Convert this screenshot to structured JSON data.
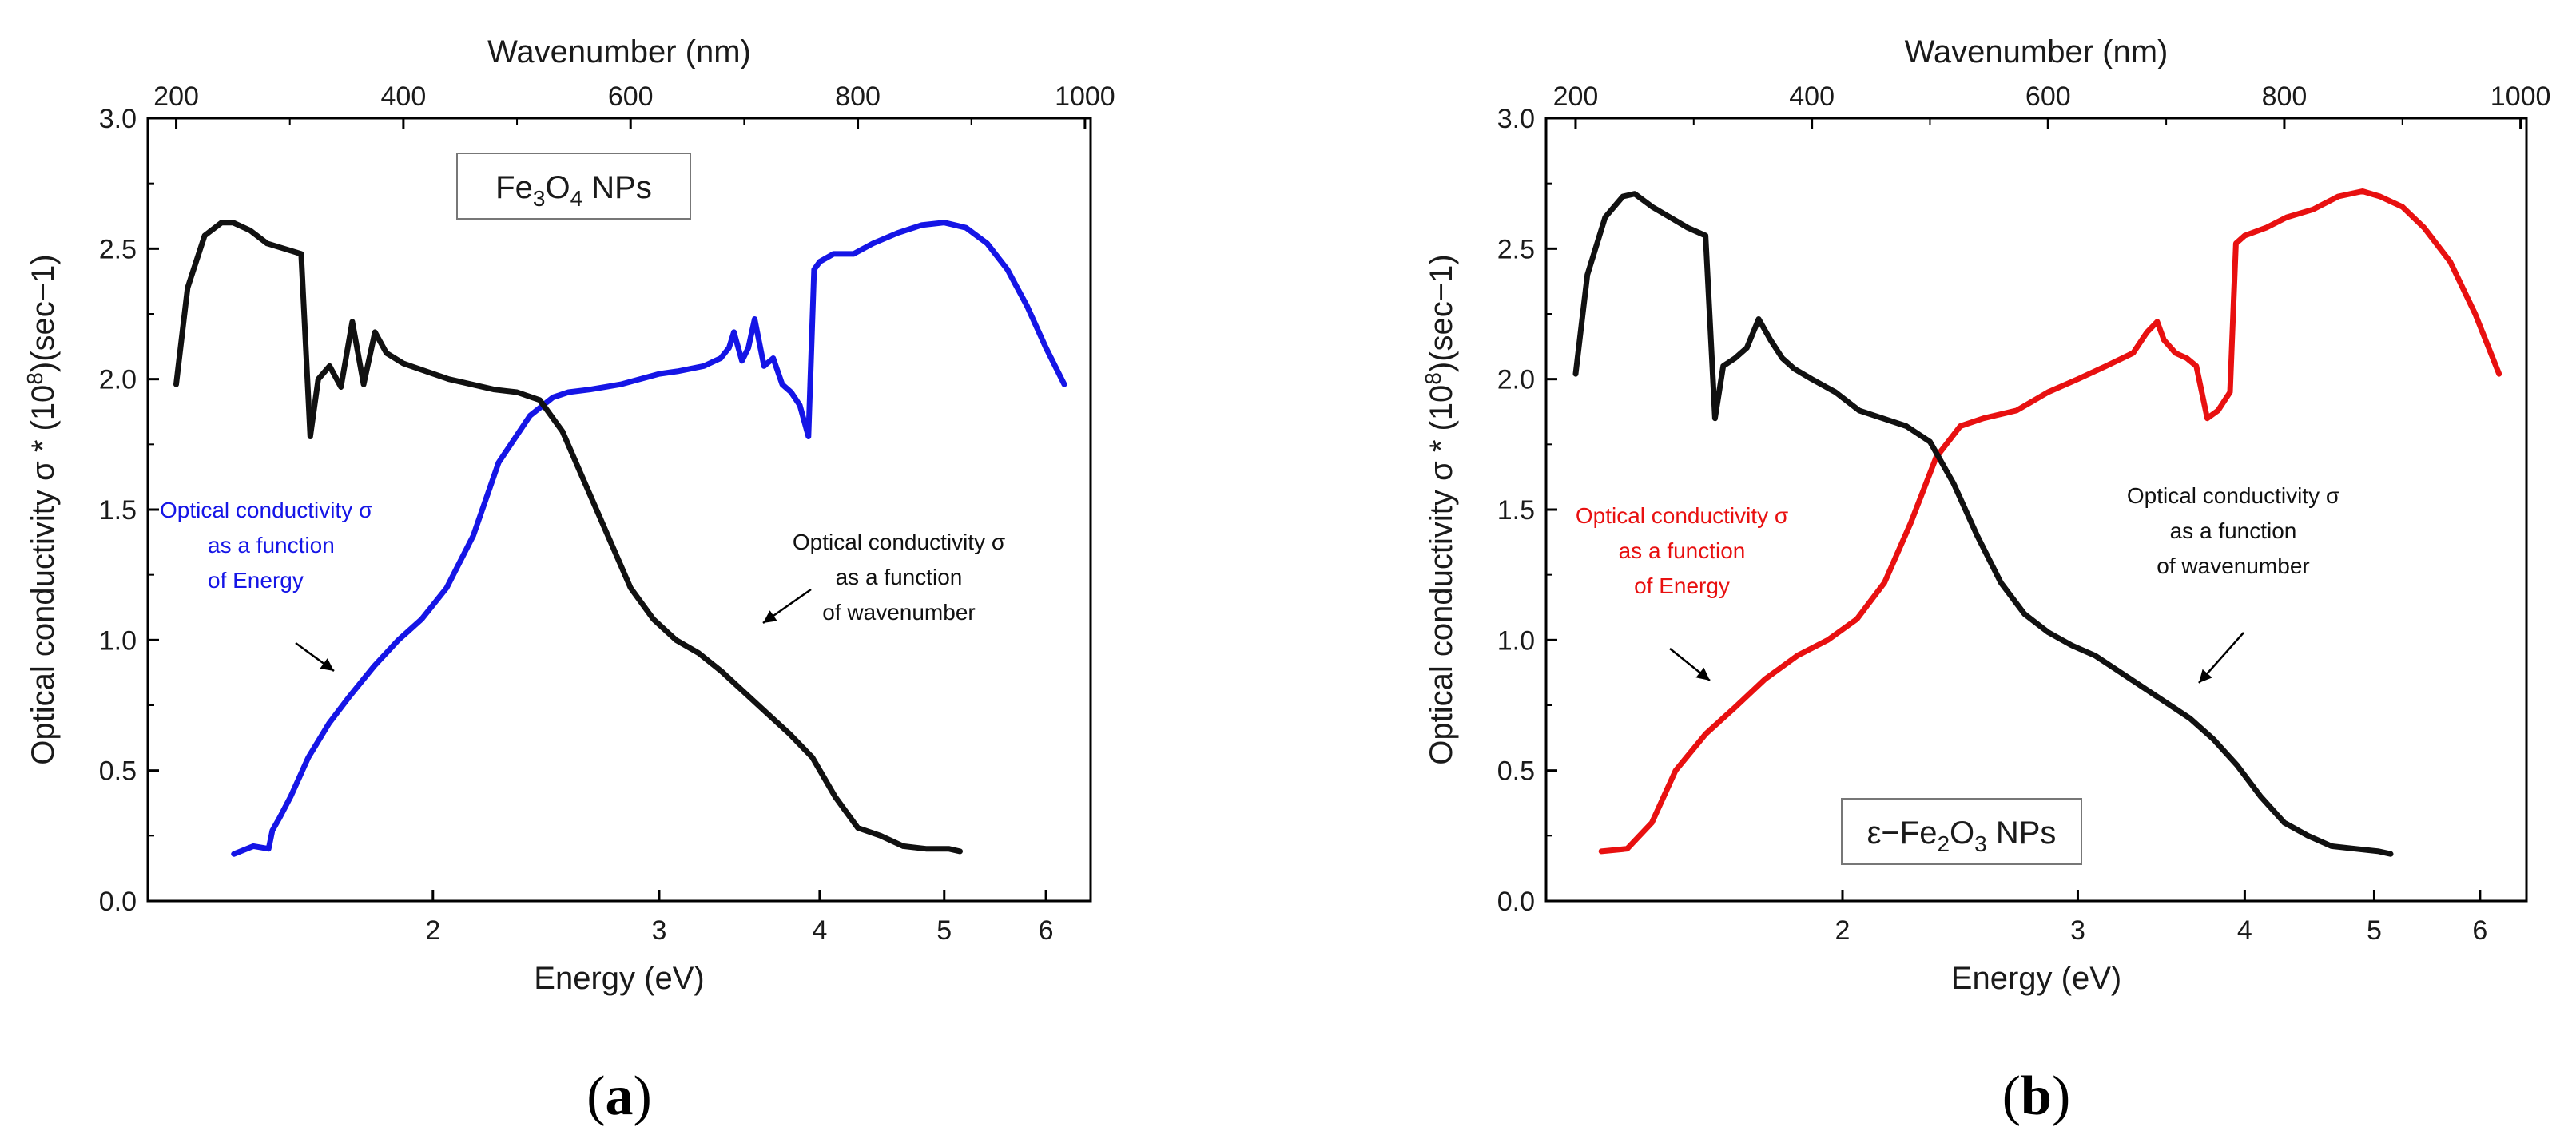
{
  "chart_data": [
    {
      "type": "line",
      "panel_label": "(a)",
      "sample_label": {
        "prefix": "Fe",
        "sub1": "3",
        "mid": "O",
        "sub2": "4",
        "suffix": " NPs"
      },
      "xlabel": "Energy (eV)",
      "x2label": "Wavenumber (nm)",
      "ylabel_parts": {
        "pre": "Optical conductivity σ * (10",
        "sup": "8",
        "post": ")(sec−1)"
      },
      "xscale": "log",
      "xlim": [
        1.2,
        6.5
      ],
      "x_ticks": [
        2,
        3,
        4,
        5,
        6
      ],
      "x_tick_labels": [
        "2",
        "3",
        "4",
        "5",
        "6"
      ],
      "x2lim": [
        175,
        1005
      ],
      "x2_ticks": [
        200,
        400,
        600,
        800,
        1000
      ],
      "x2_tick_labels": [
        "200",
        "400",
        "600",
        "800",
        "1000"
      ],
      "ylim": [
        0,
        3
      ],
      "y_ticks": [
        0,
        0.5,
        1,
        1.5,
        2,
        2.5,
        3
      ],
      "y_tick_labels": [
        "0.0",
        "0.5",
        "1.0",
        "1.5",
        "2.0",
        "2.5",
        "3.0"
      ],
      "series": [
        {
          "name": "Optical conductivity σ as a function of Energy",
          "color": "#1515e6",
          "x": [
            1.4,
            1.45,
            1.49,
            1.5,
            1.52,
            1.55,
            1.6,
            1.66,
            1.72,
            1.8,
            1.88,
            1.96,
            2.05,
            2.15,
            2.25,
            2.38,
            2.48,
            2.55,
            2.65,
            2.8,
            3.0,
            3.1,
            3.25,
            3.35,
            3.4,
            3.43,
            3.48,
            3.52,
            3.56,
            3.62,
            3.68,
            3.74,
            3.8,
            3.86,
            3.92,
            3.96,
            4.0,
            4.1,
            4.25,
            4.4,
            4.6,
            4.8,
            5.0,
            5.2,
            5.4,
            5.6,
            5.8,
            6.0,
            6.2
          ],
          "y": [
            0.18,
            0.21,
            0.2,
            0.27,
            0.32,
            0.4,
            0.55,
            0.68,
            0.78,
            0.9,
            1.0,
            1.08,
            1.2,
            1.4,
            1.68,
            1.86,
            1.93,
            1.95,
            1.96,
            1.98,
            2.02,
            2.03,
            2.05,
            2.08,
            2.12,
            2.18,
            2.07,
            2.12,
            2.23,
            2.05,
            2.08,
            1.98,
            1.95,
            1.9,
            1.78,
            2.42,
            2.45,
            2.48,
            2.48,
            2.52,
            2.56,
            2.59,
            2.6,
            2.58,
            2.52,
            2.42,
            2.28,
            2.12,
            1.98
          ]
        },
        {
          "name": "Optical conductivity σ as a function of wavenumber",
          "color": "#111111",
          "x2": [
            200,
            210,
            225,
            240,
            250,
            265,
            280,
            295,
            310,
            318,
            325,
            335,
            345,
            355,
            365,
            375,
            385,
            400,
            420,
            440,
            460,
            480,
            500,
            520,
            540,
            560,
            580,
            600,
            620,
            640,
            660,
            680,
            700,
            720,
            740,
            760,
            780,
            800,
            820,
            840,
            860,
            880,
            890
          ],
          "y": [
            1.98,
            2.35,
            2.55,
            2.6,
            2.6,
            2.57,
            2.52,
            2.5,
            2.48,
            1.78,
            2.0,
            2.05,
            1.97,
            2.22,
            1.98,
            2.18,
            2.1,
            2.06,
            2.03,
            2.0,
            1.98,
            1.96,
            1.95,
            1.92,
            1.8,
            1.6,
            1.4,
            1.2,
            1.08,
            1.0,
            0.95,
            0.88,
            0.8,
            0.72,
            0.64,
            0.55,
            0.4,
            0.28,
            0.25,
            0.21,
            0.2,
            0.2,
            0.19
          ]
        }
      ],
      "annotations": [
        {
          "text": [
            "Optical conductivity σ",
            "as a function",
            "of Energy"
          ],
          "color": "#1515e6"
        },
        {
          "text": [
            "Optical conductivity σ",
            "as a function",
            "of wavenumber"
          ],
          "color": "#111111"
        }
      ]
    },
    {
      "type": "line",
      "panel_label": "(b)",
      "sample_label": {
        "prefix": "ε−Fe",
        "sub1": "2",
        "mid": "O",
        "sub2": "3",
        "suffix": " NPs"
      },
      "xlabel": "Energy (eV)",
      "x2label": "Wavenumber (nm)",
      "ylabel_parts": {
        "pre": "Optical conductivity σ * (10",
        "sup": "8",
        "post": ")(sec−1)"
      },
      "xscale": "log",
      "xlim": [
        1.2,
        6.5
      ],
      "x_ticks": [
        2,
        3,
        4,
        5,
        6
      ],
      "x_tick_labels": [
        "2",
        "3",
        "4",
        "5",
        "6"
      ],
      "x2lim": [
        175,
        1005
      ],
      "x2_ticks": [
        200,
        400,
        600,
        800,
        1000
      ],
      "x2_tick_labels": [
        "200",
        "400",
        "600",
        "800",
        "1000"
      ],
      "ylim": [
        0,
        3
      ],
      "y_ticks": [
        0,
        0.5,
        1,
        1.5,
        2,
        2.5,
        3
      ],
      "y_tick_labels": [
        "0.0",
        "0.5",
        "1.0",
        "1.5",
        "2.0",
        "2.5",
        "3.0"
      ],
      "series": [
        {
          "name": "Optical conductivity σ as a function of Energy",
          "color": "#e81010",
          "x": [
            1.32,
            1.38,
            1.44,
            1.5,
            1.58,
            1.66,
            1.75,
            1.85,
            1.95,
            2.05,
            2.15,
            2.25,
            2.35,
            2.45,
            2.55,
            2.7,
            2.85,
            3.0,
            3.15,
            3.3,
            3.38,
            3.44,
            3.48,
            3.55,
            3.62,
            3.68,
            3.75,
            3.82,
            3.9,
            3.94,
            4.0,
            4.15,
            4.3,
            4.5,
            4.7,
            4.9,
            5.05,
            5.25,
            5.45,
            5.7,
            5.95,
            6.2
          ],
          "y": [
            0.19,
            0.2,
            0.3,
            0.5,
            0.64,
            0.74,
            0.85,
            0.94,
            1.0,
            1.08,
            1.22,
            1.45,
            1.7,
            1.82,
            1.85,
            1.88,
            1.95,
            2.0,
            2.05,
            2.1,
            2.18,
            2.22,
            2.15,
            2.1,
            2.08,
            2.05,
            1.85,
            1.88,
            1.95,
            2.52,
            2.55,
            2.58,
            2.62,
            2.65,
            2.7,
            2.72,
            2.7,
            2.66,
            2.58,
            2.45,
            2.25,
            2.02
          ]
        },
        {
          "name": "Optical conductivity σ as a function of wavenumber",
          "color": "#111111",
          "x2": [
            200,
            210,
            225,
            240,
            250,
            265,
            280,
            295,
            310,
            318,
            325,
            335,
            345,
            355,
            365,
            375,
            385,
            400,
            420,
            440,
            460,
            480,
            500,
            520,
            540,
            560,
            580,
            600,
            620,
            640,
            660,
            680,
            700,
            720,
            740,
            760,
            780,
            800,
            820,
            840,
            860,
            880,
            890
          ],
          "y": [
            2.02,
            2.4,
            2.62,
            2.7,
            2.71,
            2.66,
            2.62,
            2.58,
            2.55,
            1.85,
            2.05,
            2.08,
            2.12,
            2.23,
            2.15,
            2.08,
            2.04,
            2.0,
            1.95,
            1.88,
            1.85,
            1.82,
            1.76,
            1.6,
            1.4,
            1.22,
            1.1,
            1.03,
            0.98,
            0.94,
            0.88,
            0.82,
            0.76,
            0.7,
            0.62,
            0.52,
            0.4,
            0.3,
            0.25,
            0.21,
            0.2,
            0.19,
            0.18
          ]
        }
      ],
      "annotations": [
        {
          "text": [
            "Optical conductivity σ",
            "as a function",
            "of Energy"
          ],
          "color": "#e81010"
        },
        {
          "text": [
            "Optical conductivity σ",
            "as a function",
            "of wavenumber"
          ],
          "color": "#111111"
        }
      ]
    }
  ]
}
